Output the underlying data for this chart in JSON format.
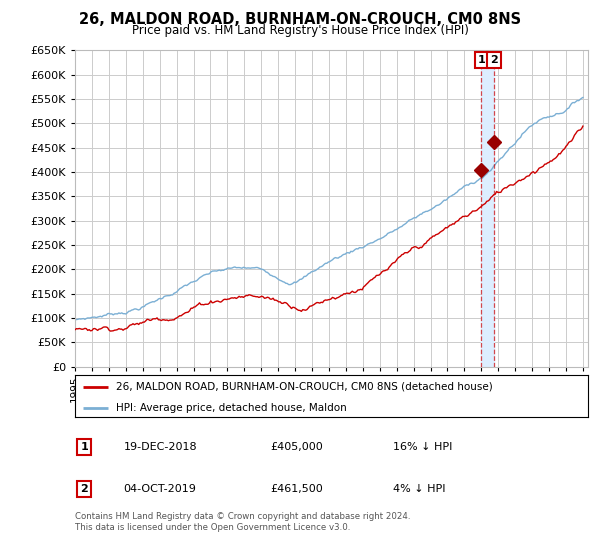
{
  "title": "26, MALDON ROAD, BURNHAM-ON-CROUCH, CM0 8NS",
  "subtitle": "Price paid vs. HM Land Registry's House Price Index (HPI)",
  "ylim": [
    0,
    650000
  ],
  "yticks": [
    0,
    50000,
    100000,
    150000,
    200000,
    250000,
    300000,
    350000,
    400000,
    450000,
    500000,
    550000,
    600000,
    650000
  ],
  "xlim_start": 1995.0,
  "xlim_end": 2025.3,
  "sale1_date": 2019.0,
  "sale1_price": 405000,
  "sale1_label": "1",
  "sale1_display_date": "19-DEC-2018",
  "sale1_display_price": "£405,000",
  "sale1_hpi_diff": "16% ↓ HPI",
  "sale2_date": 2019.75,
  "sale2_price": 461500,
  "sale2_label": "2",
  "sale2_display_date": "04-OCT-2019",
  "sale2_display_price": "£461,500",
  "sale2_hpi_diff": "4% ↓ HPI",
  "line1_color": "#cc0000",
  "line2_color": "#7bafd4",
  "marker_color": "#990000",
  "vline_color": "#cc0000",
  "shade_color": "#ddeeff",
  "background_color": "#ffffff",
  "grid_color": "#cccccc",
  "legend1_label": "26, MALDON ROAD, BURNHAM-ON-CROUCH, CM0 8NS (detached house)",
  "legend2_label": "HPI: Average price, detached house, Maldon",
  "footer": "Contains HM Land Registry data © Crown copyright and database right 2024.\nThis data is licensed under the Open Government Licence v3.0.",
  "label_box_color": "#cc0000",
  "note_label_1": "1",
  "note_label_2": "2"
}
